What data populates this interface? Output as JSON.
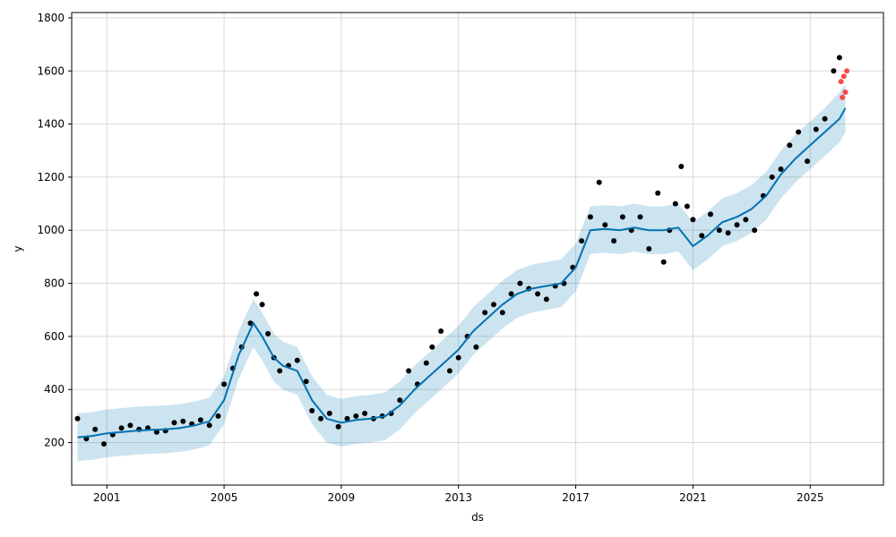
{
  "chart_data": {
    "type": "scatter",
    "xlabel": "ds",
    "ylabel": "y",
    "x_ticks": [
      "2001",
      "2005",
      "2009",
      "2013",
      "2017",
      "2021",
      "2025"
    ],
    "x_tick_values": [
      2001,
      2005,
      2009,
      2013,
      2017,
      2021,
      2025
    ],
    "y_ticks": [
      200,
      400,
      600,
      800,
      1000,
      1200,
      1400,
      1600,
      1800
    ],
    "xlim": [
      1999.8,
      2027.5
    ],
    "ylim": [
      40,
      1820
    ],
    "grid": true,
    "colors": {
      "observed": "#000000",
      "forecast_line": "#0072B2",
      "uncertainty_band": "#0072B2",
      "recent_points": "#ff2a2a"
    },
    "series": [
      {
        "kind": "observed_points",
        "x": [
          2000.0,
          2000.3,
          2000.6,
          2000.9,
          2001.2,
          2001.5,
          2001.8,
          2002.1,
          2002.4,
          2002.7,
          2003.0,
          2003.3,
          2003.6,
          2003.9,
          2004.2,
          2004.5,
          2004.8,
          2005.0,
          2005.3,
          2005.6,
          2005.9,
          2006.1,
          2006.3,
          2006.5,
          2006.7,
          2006.9,
          2007.2,
          2007.5,
          2007.8,
          2008.0,
          2008.3,
          2008.6,
          2008.9,
          2009.2,
          2009.5,
          2009.8,
          2010.1,
          2010.4,
          2010.7,
          2011.0,
          2011.3,
          2011.6,
          2011.9,
          2012.1,
          2012.4,
          2012.7,
          2013.0,
          2013.3,
          2013.6,
          2013.9,
          2014.2,
          2014.5,
          2014.8,
          2015.1,
          2015.4,
          2015.7,
          2016.0,
          2016.3,
          2016.6,
          2016.9,
          2017.2,
          2017.5,
          2017.8,
          2018.0,
          2018.3,
          2018.6,
          2018.9,
          2019.2,
          2019.5,
          2019.8,
          2020.0,
          2020.2,
          2020.4,
          2020.6,
          2020.8,
          2021.0,
          2021.3,
          2021.6,
          2021.9,
          2022.2,
          2022.5,
          2022.8,
          2023.1,
          2023.4,
          2023.7,
          2024.0,
          2024.3,
          2024.6,
          2024.9,
          2025.2,
          2025.5,
          2025.8,
          2026.0
        ],
        "y": [
          290,
          215,
          250,
          195,
          230,
          255,
          265,
          250,
          255,
          240,
          245,
          275,
          280,
          270,
          285,
          265,
          300,
          420,
          480,
          560,
          650,
          760,
          720,
          610,
          520,
          470,
          490,
          510,
          430,
          320,
          290,
          310,
          260,
          290,
          300,
          310,
          290,
          300,
          310,
          360,
          470,
          420,
          500,
          560,
          620,
          470,
          520,
          600,
          560,
          690,
          720,
          690,
          760,
          800,
          780,
          760,
          740,
          790,
          800,
          860,
          960,
          1050,
          1180,
          1020,
          960,
          1050,
          1000,
          1050,
          930,
          1140,
          880,
          1000,
          1100,
          1240,
          1090,
          1040,
          980,
          1060,
          1000,
          990,
          1020,
          1040,
          1000,
          1130,
          1200,
          1230,
          1320,
          1370,
          1260,
          1380,
          1420,
          1600,
          1650
        ]
      },
      {
        "kind": "forecast_line",
        "x": [
          2000.0,
          2000.5,
          2001.0,
          2001.5,
          2002.0,
          2002.5,
          2003.0,
          2003.5,
          2004.0,
          2004.5,
          2005.0,
          2005.5,
          2006.0,
          2006.3,
          2006.7,
          2007.0,
          2007.5,
          2008.0,
          2008.5,
          2009.0,
          2009.5,
          2010.0,
          2010.5,
          2011.0,
          2011.5,
          2012.0,
          2012.5,
          2013.0,
          2013.5,
          2014.0,
          2014.5,
          2015.0,
          2015.5,
          2016.0,
          2016.5,
          2017.0,
          2017.5,
          2018.0,
          2018.5,
          2019.0,
          2019.5,
          2020.0,
          2020.5,
          2021.0,
          2021.5,
          2022.0,
          2022.5,
          2023.0,
          2023.5,
          2024.0,
          2024.5,
          2025.0,
          2025.5,
          2026.0,
          2026.2
        ],
        "y": [
          220,
          225,
          235,
          240,
          245,
          248,
          250,
          255,
          265,
          280,
          360,
          530,
          650,
          600,
          520,
          490,
          470,
          360,
          290,
          275,
          285,
          290,
          300,
          340,
          400,
          450,
          500,
          550,
          620,
          670,
          720,
          760,
          780,
          790,
          800,
          860,
          1000,
          1005,
          1000,
          1010,
          1000,
          1000,
          1010,
          940,
          980,
          1030,
          1050,
          1080,
          1130,
          1210,
          1270,
          1320,
          1370,
          1420,
          1460
        ],
        "upper": [
          310,
          315,
          325,
          330,
          335,
          338,
          340,
          345,
          355,
          370,
          450,
          620,
          740,
          690,
          610,
          580,
          560,
          450,
          380,
          365,
          375,
          380,
          390,
          430,
          490,
          540,
          590,
          640,
          710,
          760,
          810,
          850,
          870,
          880,
          890,
          950,
          1090,
          1095,
          1090,
          1100,
          1090,
          1090,
          1100,
          1030,
          1070,
          1120,
          1140,
          1170,
          1220,
          1300,
          1360,
          1410,
          1460,
          1520,
          1550
        ],
        "lower": [
          130,
          135,
          145,
          150,
          155,
          158,
          160,
          165,
          175,
          190,
          270,
          440,
          560,
          510,
          430,
          400,
          380,
          270,
          200,
          185,
          195,
          200,
          210,
          250,
          310,
          360,
          410,
          460,
          530,
          580,
          630,
          670,
          690,
          700,
          710,
          770,
          910,
          915,
          910,
          920,
          910,
          910,
          920,
          850,
          890,
          940,
          960,
          990,
          1040,
          1120,
          1180,
          1230,
          1280,
          1330,
          1370
        ]
      },
      {
        "kind": "recent_points",
        "x": [
          2026.05,
          2026.1,
          2026.15,
          2026.2,
          2026.25
        ],
        "y": [
          1560,
          1500,
          1580,
          1520,
          1600
        ]
      }
    ]
  }
}
